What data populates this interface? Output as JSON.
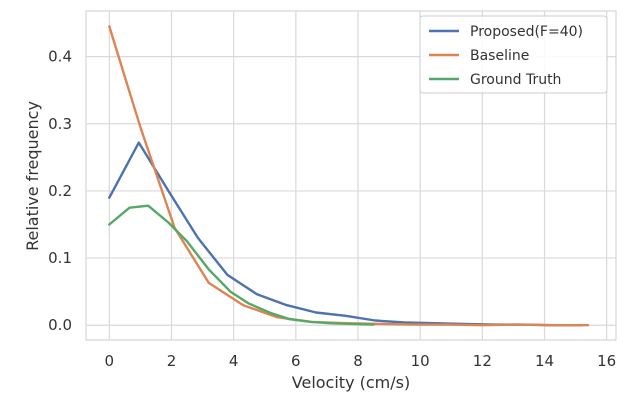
{
  "chart_data": {
    "type": "line",
    "title": "",
    "xlabel": "Velocity (cm/s)",
    "ylabel": "Relative frequency",
    "xlim": [
      -0.75,
      16.3
    ],
    "ylim": [
      -0.022,
      0.468
    ],
    "xticks": [
      0,
      2,
      4,
      6,
      8,
      10,
      12,
      14,
      16
    ],
    "xtick_labels": [
      "0",
      "2",
      "4",
      "6",
      "8",
      "10",
      "12",
      "14",
      "16"
    ],
    "yticks": [
      0.0,
      0.1,
      0.2,
      0.3,
      0.4
    ],
    "ytick_labels": [
      "0.0",
      "0.1",
      "0.2",
      "0.3",
      "0.4"
    ],
    "grid": true,
    "legend_position": "top-right",
    "series": [
      {
        "name": "Proposed(F=40)",
        "color": "#4c72b0",
        "x": [
          0.0,
          0.95,
          1.9,
          2.85,
          3.8,
          4.75,
          5.7,
          6.65,
          7.6,
          8.55,
          9.5,
          10.45,
          11.4,
          12.35,
          13.3,
          14.25,
          15.2
        ],
        "y": [
          0.19,
          0.272,
          0.2,
          0.13,
          0.075,
          0.046,
          0.03,
          0.019,
          0.014,
          0.007,
          0.004,
          0.003,
          0.002,
          0.001,
          0.001,
          0.0,
          0.0
        ]
      },
      {
        "name": "Baseline",
        "color": "#dd8452",
        "x": [
          0.0,
          1.0,
          2.1,
          3.2,
          4.3,
          5.4,
          6.5,
          7.6,
          8.7,
          9.8,
          10.9,
          12.0,
          13.1,
          14.2,
          15.4
        ],
        "y": [
          0.445,
          0.295,
          0.145,
          0.063,
          0.03,
          0.012,
          0.005,
          0.003,
          0.002,
          0.001,
          0.001,
          0.0,
          0.001,
          0.0,
          0.0
        ]
      },
      {
        "name": "Ground Truth",
        "color": "#55a868",
        "x": [
          0.0,
          0.65,
          1.25,
          1.9,
          2.5,
          3.2,
          3.9,
          4.5,
          5.2,
          5.8,
          6.5,
          7.1,
          7.8,
          8.5
        ],
        "y": [
          0.15,
          0.175,
          0.178,
          0.153,
          0.125,
          0.083,
          0.05,
          0.032,
          0.018,
          0.009,
          0.005,
          0.003,
          0.002,
          0.001
        ]
      }
    ]
  }
}
